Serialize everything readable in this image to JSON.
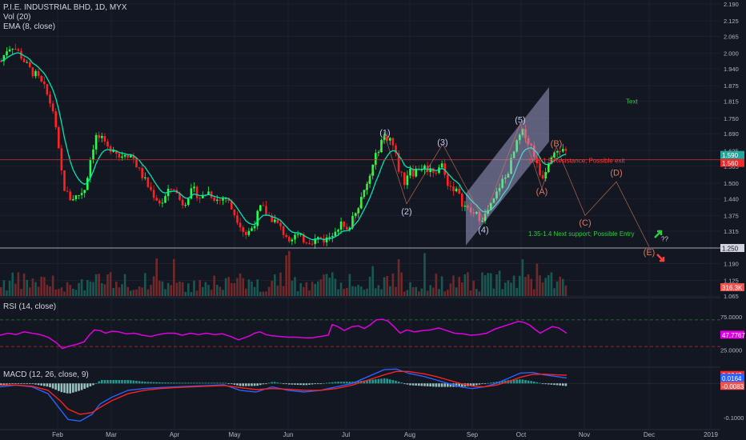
{
  "header": {
    "symbol": "P.I.E. INDUSTRIAL BHD, 1D, MYX",
    "volume_label": "Vol (20)",
    "ema_label": "EMA (8, close)"
  },
  "rsi_panel": {
    "label": "RSI (14, close)"
  },
  "macd_panel": {
    "label": "MACD (12, 26, close, 9)"
  },
  "colors": {
    "background": "#131722",
    "up": "#26a69a",
    "up_candle": "#22ff44",
    "down": "#ef5350",
    "down_candle": "#ff2222",
    "ema": "#00e5b4",
    "rsi": "#e000e0",
    "macd": "#2962ff",
    "signal": "#ff2020",
    "wave": "#d87a5c",
    "annotation_red": "#ff3b3b",
    "annotation_green": "#2ecc40"
  },
  "annotations": {
    "resistance": "1.48-1.5 Resistance; Possible exit",
    "support": "1.35-1.4 Next support; Possible Entry",
    "text": "Text",
    "question": "??"
  },
  "chart_data": [
    {
      "type": "candlestick",
      "panel": "price",
      "ylim": [
        1.065,
        2.19
      ],
      "y_ticks": [
        "2.190",
        "2.125",
        "2.065",
        "2.000",
        "1.940",
        "1.875",
        "1.815",
        "1.750",
        "1.690",
        "1.625",
        "1.565",
        "1.500",
        "1.440",
        "1.375",
        "1.315",
        "1.250",
        "1.190",
        "1.125",
        "1.065"
      ],
      "x_ticks": [
        "Feb",
        "Mar",
        "Apr",
        "May",
        "Jun",
        "Jul",
        "Aug",
        "Sep",
        "Oct",
        "Nov",
        "Dec",
        "2019"
      ],
      "price_path": [
        [
          0,
          1.97
        ],
        [
          8,
          2.02
        ],
        [
          15,
          2.03
        ],
        [
          25,
          1.99
        ],
        [
          35,
          1.94
        ],
        [
          45,
          1.91
        ],
        [
          55,
          1.86
        ],
        [
          65,
          1.78
        ],
        [
          72,
          1.62
        ],
        [
          78,
          1.49
        ],
        [
          85,
          1.44
        ],
        [
          95,
          1.45
        ],
        [
          105,
          1.48
        ],
        [
          112,
          1.6
        ],
        [
          118,
          1.68
        ],
        [
          125,
          1.67
        ],
        [
          132,
          1.63
        ],
        [
          140,
          1.64
        ],
        [
          148,
          1.6
        ],
        [
          155,
          1.62
        ],
        [
          165,
          1.6
        ],
        [
          172,
          1.55
        ],
        [
          178,
          1.52
        ],
        [
          185,
          1.48
        ],
        [
          192,
          1.45
        ],
        [
          200,
          1.42
        ],
        [
          208,
          1.46
        ],
        [
          215,
          1.49
        ],
        [
          222,
          1.44
        ],
        [
          228,
          1.42
        ],
        [
          235,
          1.46
        ],
        [
          242,
          1.47
        ],
        [
          250,
          1.44
        ],
        [
          258,
          1.47
        ],
        [
          265,
          1.45
        ],
        [
          272,
          1.43
        ],
        [
          280,
          1.45
        ],
        [
          290,
          1.39
        ],
        [
          298,
          1.35
        ],
        [
          305,
          1.3
        ],
        [
          312,
          1.32
        ],
        [
          318,
          1.36
        ],
        [
          325,
          1.41
        ],
        [
          332,
          1.38
        ],
        [
          340,
          1.36
        ],
        [
          348,
          1.33
        ],
        [
          355,
          1.3
        ],
        [
          362,
          1.29
        ],
        [
          368,
          1.3
        ],
        [
          375,
          1.285
        ],
        [
          383,
          1.28
        ],
        [
          390,
          1.28
        ],
        [
          398,
          1.29
        ],
        [
          405,
          1.28
        ],
        [
          412,
          1.3
        ],
        [
          418,
          1.33
        ],
        [
          425,
          1.34
        ],
        [
          432,
          1.31
        ],
        [
          440,
          1.38
        ],
        [
          448,
          1.43
        ],
        [
          455,
          1.47
        ],
        [
          462,
          1.54
        ],
        [
          468,
          1.6
        ],
        [
          474,
          1.66
        ],
        [
          480,
          1.68
        ],
        [
          487,
          1.67
        ],
        [
          492,
          1.62
        ],
        [
          498,
          1.54
        ],
        [
          505,
          1.5
        ],
        [
          510,
          1.57
        ],
        [
          515,
          1.54
        ],
        [
          522,
          1.56
        ],
        [
          530,
          1.56
        ],
        [
          537,
          1.55
        ],
        [
          545,
          1.55
        ],
        [
          550,
          1.58
        ],
        [
          555,
          1.52
        ],
        [
          560,
          1.49
        ],
        [
          567,
          1.48
        ],
        [
          575,
          1.43
        ],
        [
          582,
          1.4
        ],
        [
          590,
          1.38
        ],
        [
          598,
          1.37
        ],
        [
          604,
          1.37
        ],
        [
          610,
          1.4
        ],
        [
          617,
          1.44
        ],
        [
          624,
          1.5
        ],
        [
          630,
          1.52
        ],
        [
          636,
          1.57
        ],
        [
          642,
          1.63
        ],
        [
          648,
          1.68
        ],
        [
          654,
          1.7
        ],
        [
          660,
          1.65
        ],
        [
          665,
          1.63
        ],
        [
          670,
          1.56
        ],
        [
          675,
          1.52
        ],
        [
          680,
          1.55
        ],
        [
          685,
          1.6
        ],
        [
          690,
          1.63
        ],
        [
          696,
          1.64
        ],
        [
          702,
          1.62
        ],
        [
          708,
          1.6
        ]
      ],
      "horizontal_levels": [
        1.59,
        1.25
      ],
      "last_close_badge": "1.590",
      "red_level_badge": "1.560",
      "support_badge": "1.250",
      "wave_labels": [
        {
          "label": "(1)",
          "x": 481,
          "y": 1.695
        },
        {
          "label": "(2)",
          "x": 508,
          "y": 1.392
        },
        {
          "label": "(3)",
          "x": 553,
          "y": 1.658
        },
        {
          "label": "(4)",
          "x": 604,
          "y": 1.321
        },
        {
          "label": "(5)",
          "x": 650,
          "y": 1.745
        },
        {
          "label": "(A)",
          "x": 677,
          "y": 1.468
        },
        {
          "label": "(B)",
          "x": 695,
          "y": 1.654
        },
        {
          "label": "(C)",
          "x": 731,
          "y": 1.348
        },
        {
          "label": "(D)",
          "x": 770,
          "y": 1.541
        },
        {
          "label": "(E)",
          "x": 811,
          "y": 1.235
        }
      ],
      "wave_path": [
        [
          440,
          1.33
        ],
        [
          481,
          1.68
        ],
        [
          508,
          1.42
        ],
        [
          553,
          1.65
        ],
        [
          604,
          1.36
        ],
        [
          650,
          1.73
        ],
        [
          677,
          1.48
        ],
        [
          695,
          1.64
        ],
        [
          731,
          1.375
        ],
        [
          770,
          1.505
        ],
        [
          811,
          1.255
        ]
      ]
    },
    {
      "type": "bar",
      "panel": "volume",
      "label": "Vol (20)",
      "badge": "316.3K"
    },
    {
      "type": "line",
      "panel": "rsi",
      "label": "RSI (14, close)",
      "ylim": [
        0,
        100
      ],
      "y_ticks": [
        "75.0000",
        "50.0000",
        "25.0000"
      ],
      "levels": [
        70,
        30
      ],
      "last_value_badge": "47.7767",
      "points": [
        [
          0,
          47
        ],
        [
          10,
          50
        ],
        [
          20,
          48
        ],
        [
          30,
          52
        ],
        [
          40,
          50
        ],
        [
          50,
          48
        ],
        [
          60,
          44
        ],
        [
          70,
          36
        ],
        [
          78,
          27
        ],
        [
          85,
          30
        ],
        [
          95,
          33
        ],
        [
          105,
          37
        ],
        [
          112,
          48
        ],
        [
          118,
          55
        ],
        [
          125,
          54
        ],
        [
          132,
          50
        ],
        [
          140,
          53
        ],
        [
          148,
          52
        ],
        [
          158,
          49
        ],
        [
          168,
          50
        ],
        [
          178,
          47
        ],
        [
          188,
          45
        ],
        [
          198,
          48
        ],
        [
          208,
          50
        ],
        [
          218,
          50
        ],
        [
          228,
          47
        ],
        [
          238,
          50
        ],
        [
          248,
          48
        ],
        [
          258,
          50
        ],
        [
          268,
          48
        ],
        [
          278,
          49
        ],
        [
          288,
          45
        ],
        [
          298,
          40
        ],
        [
          305,
          43
        ],
        [
          312,
          46
        ],
        [
          318,
          50
        ],
        [
          325,
          52
        ],
        [
          332,
          48
        ],
        [
          340,
          46
        ],
        [
          350,
          45
        ],
        [
          360,
          44
        ],
        [
          370,
          44
        ],
        [
          380,
          43
        ],
        [
          390,
          43
        ],
        [
          400,
          45
        ],
        [
          410,
          47
        ],
        [
          415,
          63
        ],
        [
          422,
          60
        ],
        [
          430,
          54
        ],
        [
          440,
          60
        ],
        [
          448,
          61
        ],
        [
          455,
          57
        ],
        [
          462,
          62
        ],
        [
          470,
          70
        ],
        [
          478,
          71
        ],
        [
          485,
          68
        ],
        [
          492,
          60
        ],
        [
          500,
          50
        ],
        [
          508,
          55
        ],
        [
          518,
          52
        ],
        [
          528,
          54
        ],
        [
          538,
          55
        ],
        [
          548,
          58
        ],
        [
          558,
          54
        ],
        [
          568,
          50
        ],
        [
          578,
          49
        ],
        [
          588,
          47
        ],
        [
          598,
          48
        ],
        [
          608,
          50
        ],
        [
          618,
          56
        ],
        [
          628,
          60
        ],
        [
          638,
          64
        ],
        [
          648,
          68
        ],
        [
          655,
          66
        ],
        [
          662,
          62
        ],
        [
          668,
          56
        ],
        [
          675,
          50
        ],
        [
          682,
          55
        ],
        [
          690,
          60
        ],
        [
          698,
          58
        ],
        [
          708,
          50
        ]
      ]
    },
    {
      "type": "line",
      "panel": "macd",
      "label": "MACD (12, 26, close, 9)",
      "ylim": [
        -0.13,
        0.045
      ],
      "y_ticks": [
        "0.0000",
        "-0.1000"
      ],
      "badges": [
        "0.0247",
        "0.0164",
        "-0.0083"
      ],
      "macd_points": [
        [
          0,
          -0.01
        ],
        [
          20,
          -0.005
        ],
        [
          40,
          -0.01
        ],
        [
          60,
          -0.03
        ],
        [
          75,
          -0.075
        ],
        [
          85,
          -0.105
        ],
        [
          100,
          -0.11
        ],
        [
          115,
          -0.09
        ],
        [
          125,
          -0.06
        ],
        [
          140,
          -0.04
        ],
        [
          160,
          -0.02
        ],
        [
          180,
          -0.015
        ],
        [
          200,
          -0.012
        ],
        [
          220,
          -0.01
        ],
        [
          240,
          -0.008
        ],
        [
          260,
          -0.006
        ],
        [
          280,
          -0.004
        ],
        [
          300,
          -0.02
        ],
        [
          320,
          -0.025
        ],
        [
          340,
          -0.01
        ],
        [
          360,
          -0.02
        ],
        [
          380,
          -0.025
        ],
        [
          400,
          -0.02
        ],
        [
          420,
          -0.01
        ],
        [
          440,
          0.0
        ],
        [
          460,
          0.02
        ],
        [
          480,
          0.04
        ],
        [
          495,
          0.042
        ],
        [
          510,
          0.03
        ],
        [
          530,
          0.02
        ],
        [
          545,
          0.01
        ],
        [
          560,
          0.0
        ],
        [
          575,
          -0.01
        ],
        [
          590,
          -0.015
        ],
        [
          605,
          -0.01
        ],
        [
          620,
          0.0
        ],
        [
          635,
          0.015
        ],
        [
          650,
          0.03
        ],
        [
          665,
          0.032
        ],
        [
          680,
          0.025
        ],
        [
          695,
          0.02
        ],
        [
          708,
          0.016
        ]
      ],
      "signal_points": [
        [
          0,
          -0.005
        ],
        [
          20,
          -0.005
        ],
        [
          40,
          -0.008
        ],
        [
          60,
          -0.02
        ],
        [
          75,
          -0.05
        ],
        [
          85,
          -0.075
        ],
        [
          100,
          -0.09
        ],
        [
          115,
          -0.085
        ],
        [
          125,
          -0.07
        ],
        [
          140,
          -0.05
        ],
        [
          160,
          -0.03
        ],
        [
          180,
          -0.02
        ],
        [
          200,
          -0.015
        ],
        [
          220,
          -0.012
        ],
        [
          240,
          -0.01
        ],
        [
          260,
          -0.008
        ],
        [
          280,
          -0.006
        ],
        [
          300,
          -0.012
        ],
        [
          320,
          -0.018
        ],
        [
          340,
          -0.015
        ],
        [
          360,
          -0.017
        ],
        [
          380,
          -0.02
        ],
        [
          400,
          -0.02
        ],
        [
          420,
          -0.015
        ],
        [
          440,
          -0.005
        ],
        [
          460,
          0.01
        ],
        [
          480,
          0.025
        ],
        [
          495,
          0.035
        ],
        [
          510,
          0.035
        ],
        [
          530,
          0.028
        ],
        [
          545,
          0.02
        ],
        [
          560,
          0.01
        ],
        [
          575,
          0.0
        ],
        [
          590,
          -0.008
        ],
        [
          605,
          -0.01
        ],
        [
          620,
          -0.005
        ],
        [
          635,
          0.005
        ],
        [
          650,
          0.018
        ],
        [
          665,
          0.026
        ],
        [
          680,
          0.027
        ],
        [
          695,
          0.025
        ],
        [
          708,
          0.024
        ]
      ]
    }
  ]
}
